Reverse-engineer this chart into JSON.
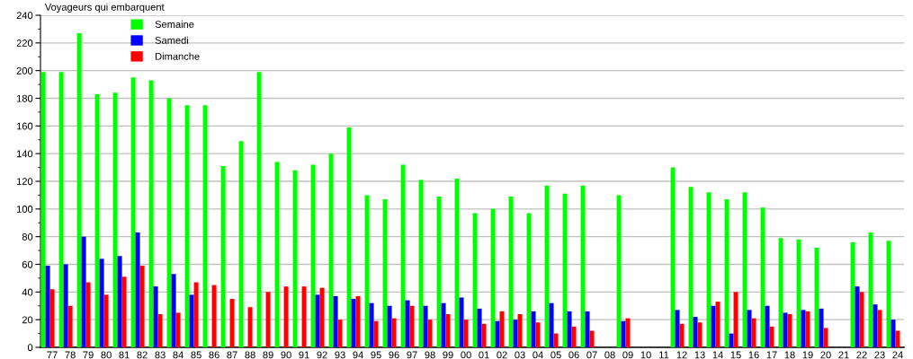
{
  "chart_data": {
    "type": "bar",
    "ylabel": "Voyageurs qui embarquent",
    "categories": [
      "77",
      "78",
      "79",
      "80",
      "81",
      "82",
      "83",
      "84",
      "85",
      "86",
      "87",
      "88",
      "89",
      "90",
      "91",
      "92",
      "93",
      "94",
      "95",
      "96",
      "97",
      "98",
      "99",
      "00",
      "01",
      "02",
      "03",
      "04",
      "05",
      "06",
      "07",
      "08",
      "09",
      "10",
      "11",
      "12",
      "13",
      "14",
      "15",
      "16",
      "17",
      "18",
      "19",
      "20",
      "21",
      "22",
      "23",
      "24"
    ],
    "series": [
      {
        "name": "Semaine",
        "color": "#00ff00",
        "values": [
          199,
          199,
          227,
          183,
          184,
          195,
          193,
          180,
          175,
          175,
          131,
          149,
          199,
          134,
          128,
          132,
          140,
          159,
          110,
          107,
          132,
          121,
          109,
          122,
          97,
          100,
          109,
          97,
          117,
          111,
          117,
          null,
          110,
          null,
          null,
          130,
          116,
          112,
          107,
          112,
          101,
          79,
          78,
          72,
          null,
          76,
          83,
          77
        ]
      },
      {
        "name": "Samedi",
        "color": "#0000ff",
        "values": [
          59,
          60,
          80,
          64,
          66,
          83,
          44,
          53,
          38,
          null,
          null,
          null,
          null,
          null,
          null,
          38,
          37,
          35,
          32,
          30,
          34,
          30,
          32,
          36,
          28,
          19,
          20,
          26,
          32,
          26,
          26,
          null,
          19,
          null,
          null,
          27,
          22,
          30,
          10,
          27,
          30,
          25,
          27,
          28,
          null,
          44,
          31,
          20
        ]
      },
      {
        "name": "Dimanche",
        "color": "#ff0000",
        "values": [
          42,
          30,
          47,
          38,
          51,
          59,
          24,
          25,
          47,
          45,
          35,
          29,
          40,
          44,
          44,
          43,
          20,
          37,
          19,
          21,
          30,
          20,
          24,
          20,
          17,
          26,
          24,
          18,
          10,
          15,
          12,
          null,
          21,
          null,
          null,
          17,
          18,
          33,
          40,
          21,
          15,
          24,
          26,
          14,
          null,
          40,
          27,
          12
        ]
      }
    ],
    "ylim": [
      0,
      240
    ],
    "yticks": [
      0,
      20,
      40,
      60,
      80,
      100,
      120,
      140,
      160,
      180,
      200,
      220,
      240
    ],
    "grid": "y",
    "legend": "top left"
  }
}
